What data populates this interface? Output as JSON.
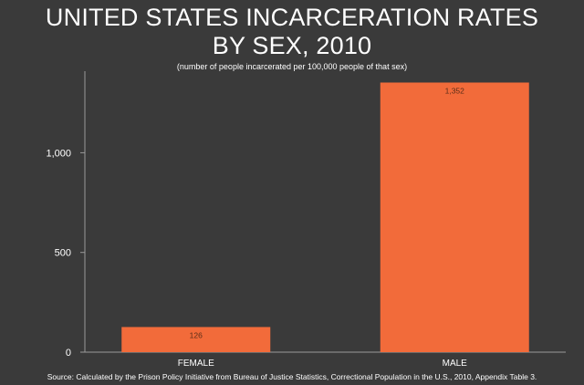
{
  "chart_data": {
    "type": "bar",
    "title_line1": "UNITED STATES INCARCERATION RATES",
    "title_line2": "BY SEX, 2010",
    "subtitle": "(number of people incarcerated per 100,000 people of that sex)",
    "categories": [
      "FEMALE",
      "MALE"
    ],
    "values": [
      126,
      1352
    ],
    "value_labels": [
      "126",
      "1,352"
    ],
    "yticks": [
      0,
      500,
      1000
    ],
    "ytick_labels": [
      "0",
      "500",
      "1,000"
    ],
    "ylim": [
      0,
      1400
    ],
    "grid": false,
    "legend": "none",
    "bar_color": "#f26b3a",
    "axis_color": "#9a9a9a",
    "background_color": "#3a3a3a"
  },
  "source": "Source: Calculated by the Prison Policy Initiative from Bureau of Justice Statistics, Correctional Population in the U.S., 2010, Appendix Table 3."
}
